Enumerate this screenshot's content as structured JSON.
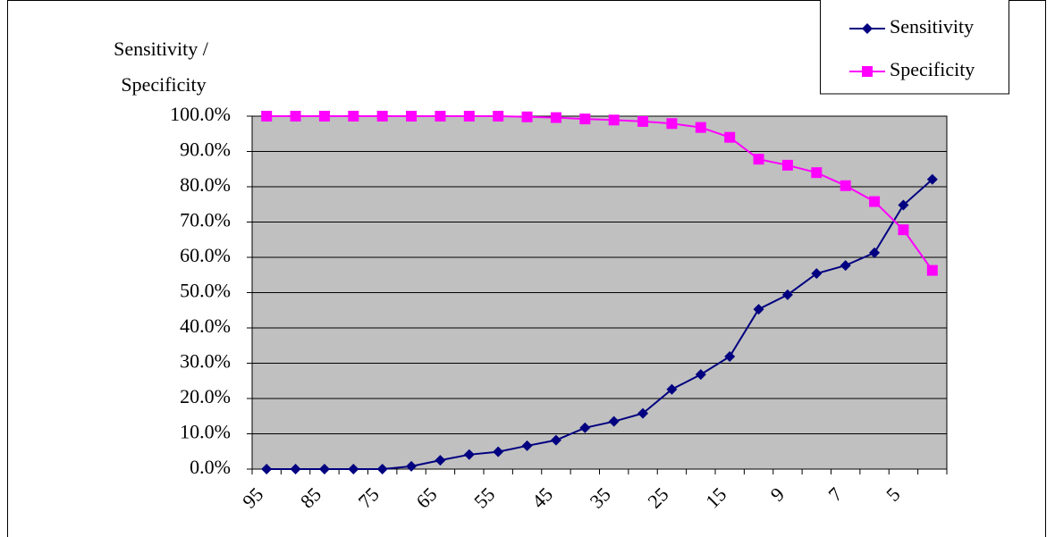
{
  "chart_data": {
    "type": "line",
    "y_label_lines": [
      "Sensitivity /",
      "Specificity"
    ],
    "categories": [
      "95",
      null,
      "85",
      null,
      "75",
      null,
      "65",
      null,
      "55",
      null,
      "45",
      null,
      "35",
      null,
      "25",
      null,
      "15",
      null,
      "9",
      null,
      "7",
      null,
      "5",
      null
    ],
    "series": [
      {
        "name": "Sensitivity",
        "color": "#000080",
        "marker": "diamond",
        "values": [
          0,
          0,
          0,
          0,
          0,
          0.8,
          2.5,
          4.1,
          4.9,
          6.6,
          8.2,
          11.7,
          13.5,
          15.8,
          22.6,
          26.8,
          31.9,
          45.3,
          49.4,
          55.4,
          57.7,
          61.3,
          74.8,
          82.1
        ]
      },
      {
        "name": "Specificity",
        "color": "#ff00ff",
        "marker": "square",
        "values": [
          100,
          100,
          100,
          100,
          100,
          100,
          100,
          100,
          100,
          99.8,
          99.6,
          99.2,
          98.9,
          98.5,
          97.9,
          96.8,
          94.0,
          87.8,
          86.1,
          84.0,
          80.3,
          75.8,
          67.8,
          56.3
        ]
      }
    ],
    "ylim": [
      0,
      100
    ],
    "yticks": [
      {
        "value": 0,
        "label": "0.0%"
      },
      {
        "value": 10,
        "label": "10.0%"
      },
      {
        "value": 20,
        "label": "20.0%"
      },
      {
        "value": 30,
        "label": "30.0%"
      },
      {
        "value": 40,
        "label": "40.0%"
      },
      {
        "value": 50,
        "label": "50.0%"
      },
      {
        "value": 60,
        "label": "60.0%"
      },
      {
        "value": 70,
        "label": "70.0%"
      },
      {
        "value": 80,
        "label": "80.0%"
      },
      {
        "value": 90,
        "label": "90.0%"
      },
      {
        "value": 100,
        "label": "100.0%"
      }
    ],
    "grid": true,
    "legend": "top-right",
    "plot_background": "#c0c0c0"
  }
}
